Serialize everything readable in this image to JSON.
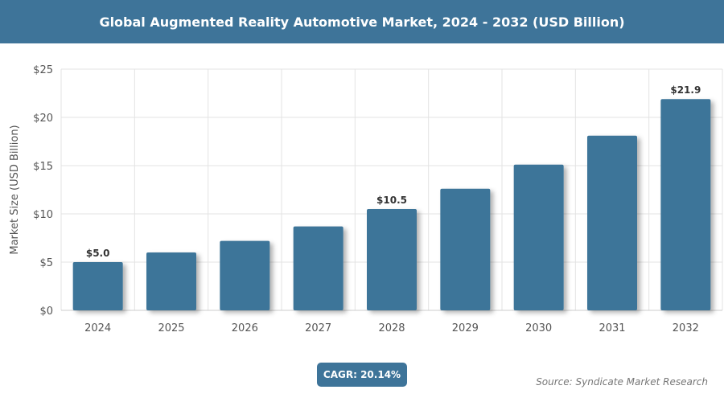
{
  "header": {
    "title": "Global Augmented Reality Automotive Market, 2024 - 2032 (USD Billion)"
  },
  "chart_data": {
    "type": "bar",
    "title": "Global Augmented Reality Automotive Market, 2024 - 2032 (USD Billion)",
    "categories": [
      "2024",
      "2025",
      "2026",
      "2027",
      "2028",
      "2029",
      "2030",
      "2031",
      "2032"
    ],
    "values": [
      5.0,
      6.0,
      7.2,
      8.7,
      10.5,
      12.6,
      15.1,
      18.1,
      21.9
    ],
    "data_labels": {
      "0": "$5.0",
      "4": "$10.5",
      "8": "$21.9"
    },
    "ylabel": "Market Size (USD Billion)",
    "xlabel": "",
    "ylim": [
      0,
      25
    ],
    "yticks": [
      "$0",
      "$5",
      "$10",
      "$15",
      "$20",
      "$25"
    ],
    "grid": true,
    "bar_color": "#3e7499"
  },
  "footer": {
    "cagr": "CAGR: 20.14%",
    "source": "Source: Syndicate Market Research"
  }
}
